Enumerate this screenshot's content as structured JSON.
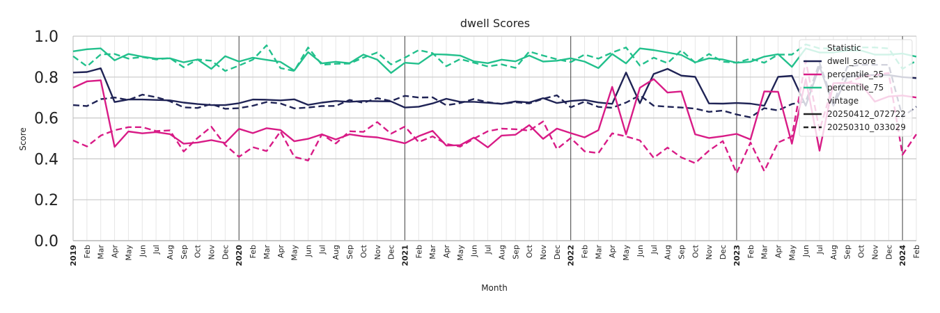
{
  "chart_data": {
    "type": "line",
    "title": "dwell Scores",
    "xlabel": "Month",
    "ylabel": "Score",
    "ylim": [
      0.0,
      1.0
    ],
    "yticks": [
      "0.0",
      "0.2",
      "0.4",
      "0.6",
      "0.8",
      "1.0"
    ],
    "x_start_index": 0,
    "x_end_index": 61,
    "month_labels": [
      "2019",
      "Feb",
      "Mar",
      "Apr",
      "May",
      "Jun",
      "Jul",
      "Aug",
      "Sep",
      "Oct",
      "Nov",
      "Dec",
      "2020",
      "Feb",
      "Mar",
      "Apr",
      "May",
      "Jun",
      "Jul",
      "Aug",
      "Sep",
      "Oct",
      "Nov",
      "Dec",
      "2021",
      "Feb",
      "Mar",
      "Apr",
      "May",
      "Jun",
      "Jul",
      "Aug",
      "Sep",
      "Oct",
      "Nov",
      "Dec",
      "2022",
      "Feb",
      "Mar",
      "Apr",
      "May",
      "Jun",
      "Jul",
      "Aug",
      "Sep",
      "Oct",
      "Nov",
      "Dec",
      "2023",
      "Feb",
      "Mar",
      "Apr",
      "May",
      "Jun",
      "Jul",
      "Aug",
      "Sep",
      "Oct",
      "Nov",
      "Dec",
      "2024",
      "Feb"
    ],
    "year_boundaries": [
      12,
      24,
      36,
      48,
      60
    ],
    "colors": {
      "dwell_score": "#1f2355",
      "percentile_25": "#d81b86",
      "percentile_75": "#22c08c"
    },
    "legend": {
      "placement": "top-right",
      "statistic_title": "Statistic",
      "statistic_items": [
        "dwell_score",
        "percentile_25",
        "percentile_75"
      ],
      "vintage_title": "vintage",
      "vintage_items": [
        {
          "label": "20250412_072722",
          "dash": "solid"
        },
        {
          "label": "20250310_033029",
          "dash": "dashed"
        }
      ]
    },
    "series": [
      {
        "name": "dwell_score",
        "vintage": "20250412_072722",
        "dash": "solid",
        "values": [
          0.822,
          0.825,
          0.843,
          0.678,
          0.69,
          0.69,
          0.688,
          0.686,
          0.675,
          0.668,
          0.663,
          0.663,
          0.672,
          0.69,
          0.689,
          0.686,
          0.691,
          0.664,
          0.675,
          0.683,
          0.679,
          0.683,
          0.682,
          0.681,
          0.651,
          0.655,
          0.671,
          0.694,
          0.679,
          0.679,
          0.674,
          0.669,
          0.681,
          0.676,
          0.697,
          0.673,
          0.683,
          0.688,
          0.676,
          0.669,
          0.822,
          0.672,
          0.815,
          0.84,
          0.807,
          0.801,
          0.671,
          0.67,
          0.673,
          0.67,
          0.66,
          0.801,
          0.806,
          0.66,
          0.853,
          0.66,
          0.8,
          0.81,
          0.81,
          0.81,
          0.8,
          0.795
        ]
      },
      {
        "name": "dwell_score",
        "vintage": "20250310_033029",
        "dash": "dashed",
        "values": [
          0.663,
          0.658,
          0.692,
          0.7,
          0.688,
          0.714,
          0.702,
          0.682,
          0.652,
          0.649,
          0.668,
          0.645,
          0.648,
          0.66,
          0.678,
          0.671,
          0.647,
          0.651,
          0.658,
          0.659,
          0.688,
          0.674,
          0.697,
          0.683,
          0.708,
          0.7,
          0.701,
          0.662,
          0.673,
          0.693,
          0.677,
          0.669,
          0.677,
          0.671,
          0.694,
          0.711,
          0.652,
          0.68,
          0.654,
          0.65,
          0.675,
          0.711,
          0.66,
          0.655,
          0.651,
          0.646,
          0.63,
          0.636,
          0.617,
          0.603,
          0.648,
          0.637,
          0.668,
          0.68,
          0.87,
          0.67,
          0.85,
          0.86,
          0.86,
          0.86,
          0.605,
          0.655
        ]
      },
      {
        "name": "percentile_25",
        "vintage": "20250412_072722",
        "dash": "solid",
        "values": [
          0.748,
          0.779,
          0.784,
          0.459,
          0.534,
          0.525,
          0.531,
          0.521,
          0.474,
          0.48,
          0.492,
          0.478,
          0.547,
          0.526,
          0.55,
          0.541,
          0.486,
          0.498,
          0.52,
          0.495,
          0.52,
          0.51,
          0.505,
          0.492,
          0.476,
          0.511,
          0.537,
          0.465,
          0.467,
          0.504,
          0.456,
          0.514,
          0.518,
          0.565,
          0.498,
          0.548,
          0.526,
          0.505,
          0.54,
          0.752,
          0.52,
          0.748,
          0.79,
          0.724,
          0.73,
          0.52,
          0.502,
          0.511,
          0.522,
          0.495,
          0.73,
          0.728,
          0.474,
          0.79,
          0.44,
          0.77,
          0.772,
          0.765,
          0.68,
          0.705,
          0.71,
          0.7
        ]
      },
      {
        "name": "percentile_25",
        "vintage": "20250310_033029",
        "dash": "dashed",
        "values": [
          0.49,
          0.461,
          0.514,
          0.54,
          0.555,
          0.555,
          0.536,
          0.539,
          0.436,
          0.502,
          0.557,
          0.468,
          0.41,
          0.457,
          0.438,
          0.534,
          0.41,
          0.392,
          0.52,
          0.475,
          0.535,
          0.532,
          0.58,
          0.523,
          0.558,
          0.482,
          0.51,
          0.473,
          0.46,
          0.499,
          0.535,
          0.548,
          0.545,
          0.538,
          0.583,
          0.448,
          0.502,
          0.437,
          0.428,
          0.525,
          0.51,
          0.49,
          0.405,
          0.455,
          0.407,
          0.379,
          0.44,
          0.487,
          0.33,
          0.48,
          0.34,
          0.48,
          0.51,
          0.88,
          0.54,
          0.77,
          0.77,
          0.8,
          0.81,
          0.82,
          0.42,
          0.52
        ]
      },
      {
        "name": "percentile_75",
        "vintage": "20250412_072722",
        "dash": "solid",
        "values": [
          0.926,
          0.936,
          0.94,
          0.882,
          0.913,
          0.9,
          0.89,
          0.892,
          0.872,
          0.886,
          0.84,
          0.902,
          0.876,
          0.895,
          0.884,
          0.874,
          0.832,
          0.922,
          0.867,
          0.875,
          0.868,
          0.91,
          0.885,
          0.82,
          0.87,
          0.865,
          0.912,
          0.91,
          0.905,
          0.877,
          0.868,
          0.885,
          0.877,
          0.905,
          0.876,
          0.88,
          0.892,
          0.876,
          0.844,
          0.913,
          0.867,
          0.94,
          0.932,
          0.92,
          0.908,
          0.872,
          0.892,
          0.886,
          0.87,
          0.875,
          0.9,
          0.912,
          0.85,
          0.94,
          0.92,
          0.92,
          0.93,
          0.93,
          0.91,
          0.91,
          0.915,
          0.9
        ]
      },
      {
        "name": "percentile_75",
        "vintage": "20250310_033029",
        "dash": "dashed",
        "values": [
          0.902,
          0.852,
          0.911,
          0.913,
          0.89,
          0.898,
          0.886,
          0.893,
          0.848,
          0.886,
          0.88,
          0.83,
          0.856,
          0.885,
          0.955,
          0.844,
          0.83,
          0.945,
          0.86,
          0.865,
          0.866,
          0.895,
          0.92,
          0.862,
          0.895,
          0.932,
          0.917,
          0.853,
          0.888,
          0.87,
          0.852,
          0.862,
          0.845,
          0.925,
          0.905,
          0.887,
          0.873,
          0.91,
          0.89,
          0.92,
          0.945,
          0.856,
          0.895,
          0.868,
          0.931,
          0.87,
          0.913,
          0.875,
          0.87,
          0.89,
          0.87,
          0.91,
          0.91,
          0.96,
          0.94,
          0.94,
          0.94,
          0.945,
          0.945,
          0.94,
          0.84,
          0.88
        ]
      }
    ]
  }
}
